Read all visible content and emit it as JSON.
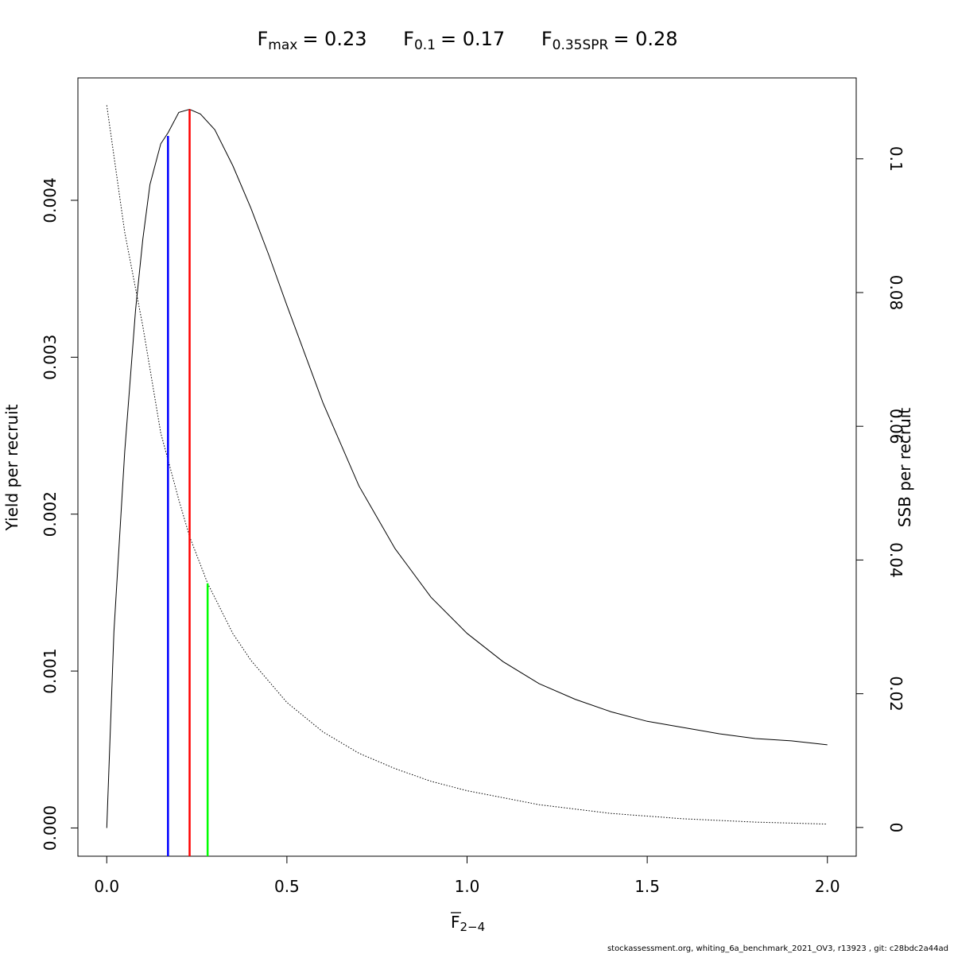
{
  "chart_data": {
    "type": "line",
    "title": {
      "fmax_label": "F",
      "fmax_sub": "max",
      "fmax_value": "= 0.23",
      "f01_label": "F",
      "f01_sub": "0.1",
      "f01_value": "= 0.17",
      "fspr_label": "F",
      "fspr_sub": "0.35SPR",
      "fspr_value": "= 0.28"
    },
    "xlabel": {
      "main": "F",
      "sub": "2−4"
    },
    "ylabel_left": "Yield per recruit",
    "ylabel_right": "SSB per recruit",
    "xlim": [
      -0.08,
      2.08
    ],
    "ylim_left": [
      -0.00018,
      0.00478
    ],
    "ylim_right": [
      -0.0043,
      0.1121
    ],
    "x_ticks": [
      0.0,
      0.5,
      1.0,
      1.5,
      2.0
    ],
    "x_tick_labels": [
      "0.0",
      "0.5",
      "1.0",
      "1.5",
      "2.0"
    ],
    "y_left_ticks": [
      0.0,
      0.001,
      0.002,
      0.003,
      0.004
    ],
    "y_left_tick_labels": [
      "0.000",
      "0.001",
      "0.002",
      "0.003",
      "0.004"
    ],
    "y_right_ticks": [
      0,
      0.02,
      0.04,
      0.06,
      0.08,
      0.1
    ],
    "y_right_tick_labels": [
      "0",
      "0.02",
      "0.04",
      "0.06",
      "0.08",
      "0.1"
    ],
    "series": [
      {
        "axis": "left",
        "style": "solid",
        "color": "#000000",
        "x": [
          0,
          0.02,
          0.05,
          0.08,
          0.1,
          0.12,
          0.15,
          0.17,
          0.2,
          0.23,
          0.26,
          0.3,
          0.35,
          0.4,
          0.45,
          0.5,
          0.6,
          0.7,
          0.8,
          0.9,
          1.0,
          1.1,
          1.2,
          1.3,
          1.4,
          1.5,
          1.6,
          1.7,
          1.8,
          1.9,
          2.0
        ],
        "values": [
          0,
          0.00125,
          0.0024,
          0.0033,
          0.00375,
          0.0041,
          0.00436,
          0.00443,
          0.00456,
          0.00458,
          0.00455,
          0.00445,
          0.00422,
          0.00395,
          0.00365,
          0.00333,
          0.00271,
          0.00218,
          0.00178,
          0.00147,
          0.00124,
          0.00106,
          0.00092,
          0.00082,
          0.00074,
          0.00068,
          0.00064,
          0.0006,
          0.00057,
          0.000555,
          0.00053
        ]
      },
      {
        "axis": "right",
        "style": "dotted",
        "color": "#000000",
        "x": [
          0,
          0.05,
          0.1,
          0.15,
          0.17,
          0.2,
          0.23,
          0.28,
          0.35,
          0.4,
          0.5,
          0.6,
          0.7,
          0.8,
          0.9,
          1.0,
          1.2,
          1.4,
          1.6,
          1.8,
          2.0
        ],
        "values": [
          0.108,
          0.089,
          0.075,
          0.059,
          0.055,
          0.049,
          0.0435,
          0.0365,
          0.029,
          0.025,
          0.0187,
          0.0143,
          0.0111,
          0.0088,
          0.0069,
          0.0055,
          0.0034,
          0.0021,
          0.0013,
          0.0008,
          0.0005
        ]
      }
    ],
    "reference_lines": [
      {
        "name": "F0.1",
        "x": 0.17,
        "axis": "left",
        "y_top": 0.00441,
        "color": "#0000ff"
      },
      {
        "name": "Fmax",
        "x": 0.23,
        "axis": "left",
        "y_top": 0.00458,
        "color": "#ff0000"
      },
      {
        "name": "F0.35SPR",
        "x": 0.28,
        "axis": "right",
        "y_top": 0.0365,
        "color": "#00ff00"
      }
    ]
  },
  "footer": "stockassessment.org, whiting_6a_benchmark_2021_OV3, r13923 , git: c28bdc2a44ad"
}
